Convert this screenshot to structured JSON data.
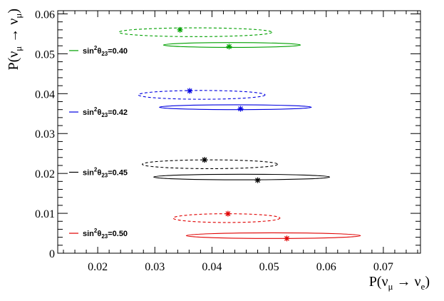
{
  "chart_data": {
    "type": "scatter",
    "xlabel": {
      "base": "P(ν",
      "sub1": "μ",
      "arrow": " → ν",
      "sub2": "e",
      "close": ")"
    },
    "ylabel": {
      "base": "P(ν",
      "sub1": "μ",
      "arrow": " → ν",
      "sub2": "μ",
      "close": ")"
    },
    "xlim": [
      0.013,
      0.0765
    ],
    "ylim": [
      0,
      0.0608
    ],
    "xticks": [
      0.02,
      0.03,
      0.04,
      0.05,
      0.06,
      0.07
    ],
    "xtick_labels": [
      "0.02",
      "0.03",
      "0.04",
      "0.05",
      "0.06",
      "0.07"
    ],
    "yticks": [
      0,
      0.01,
      0.02,
      0.03,
      0.04,
      0.05,
      0.06
    ],
    "ytick_labels": [
      "0",
      "0.01",
      "0.02",
      "0.03",
      "0.04",
      "0.05",
      "0.06"
    ],
    "series": [
      {
        "name": "sin²θ23=0.40",
        "legend": {
          "prefix": "sin",
          "sup": "2",
          "theta": "θ",
          "sub": "23",
          "value": "=0.40"
        },
        "color": "#00a000",
        "solid": {
          "x_range": [
            0.0315,
            0.0555
          ],
          "y": 0.0522,
          "y_halfwidth": 0.0006,
          "point": [
            0.043,
            0.0518
          ]
        },
        "dashed": {
          "x_range": [
            0.0237,
            0.0505
          ],
          "y": 0.0554,
          "y_halfwidth": 0.0011,
          "point": [
            0.0344,
            0.056
          ]
        },
        "legend_y": 0.0508
      },
      {
        "name": "sin²θ23=0.42",
        "legend": {
          "prefix": "sin",
          "sup": "2",
          "theta": "θ",
          "sub": "23",
          "value": "=0.42"
        },
        "color": "#0000e0",
        "solid": {
          "x_range": [
            0.0308,
            0.0574
          ],
          "y": 0.0366,
          "y_halfwidth": 0.0006,
          "point": [
            0.045,
            0.0362
          ]
        },
        "dashed": {
          "x_range": [
            0.0271,
            0.0493
          ],
          "y": 0.0397,
          "y_halfwidth": 0.0011,
          "point": [
            0.0361,
            0.0407
          ]
        },
        "legend_y": 0.0354
      },
      {
        "name": "sin²θ23=0.45",
        "legend": {
          "prefix": "sin",
          "sup": "2",
          "theta": "θ",
          "sub": "23",
          "value": "=0.45"
        },
        "color": "#000000",
        "solid": {
          "x_range": [
            0.0298,
            0.0606
          ],
          "y": 0.0191,
          "y_halfwidth": 0.0007,
          "point": [
            0.048,
            0.0183
          ]
        },
        "dashed": {
          "x_range": [
            0.0278,
            0.0515
          ],
          "y": 0.0223,
          "y_halfwidth": 0.0011,
          "point": [
            0.0387,
            0.0234
          ]
        },
        "legend_y": 0.0203
      },
      {
        "name": "sin²θ23=0.50",
        "legend": {
          "prefix": "sin",
          "sup": "2",
          "theta": "θ",
          "sub": "23",
          "value": "=0.50"
        },
        "color": "#e00000",
        "solid": {
          "x_range": [
            0.0355,
            0.066
          ],
          "y": 0.0044,
          "y_halfwidth": 0.0007,
          "point": [
            0.0531,
            0.0037
          ]
        },
        "dashed": {
          "x_range": [
            0.0332,
            0.0519
          ],
          "y": 0.0088,
          "y_halfwidth": 0.0011,
          "point": [
            0.0428,
            0.0099
          ]
        },
        "legend_y": 0.005
      }
    ],
    "legend_position": "left-inside"
  }
}
